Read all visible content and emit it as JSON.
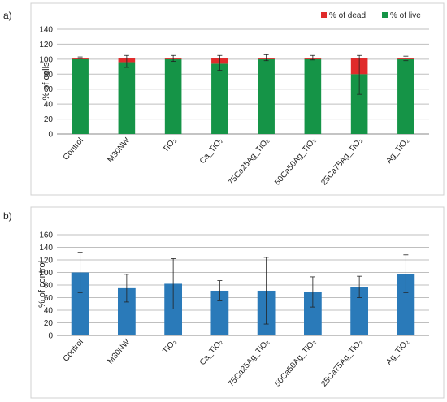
{
  "chart_data": [
    {
      "panel_label": "a)",
      "type": "bar",
      "stacked": true,
      "ylabel": "% of cells",
      "ylim": [
        0,
        140
      ],
      "yticks": [
        0,
        20,
        40,
        60,
        80,
        100,
        120,
        140
      ],
      "grid": true,
      "legend_position": "top-right",
      "categories": [
        "Control",
        "M30NW",
        "TiO₂",
        "Ca_TiO₂",
        "75Ca25Ag_TiO₂",
        "50Ca50Ag_TiO₂",
        "25Ca75Ag_TiO₂",
        "Ag_TiO₂"
      ],
      "series": [
        {
          "name": "% of live",
          "color": "#159447",
          "values": [
            100,
            96,
            100,
            94,
            100,
            100,
            80,
            100
          ]
        },
        {
          "name": "% of dead",
          "color": "#e02b2b",
          "values": [
            2,
            6,
            2,
            8,
            2,
            2,
            22,
            2
          ]
        }
      ],
      "error": [
        1,
        8,
        4,
        10,
        4,
        3,
        26,
        3
      ],
      "error_anchor": [
        102,
        97,
        101,
        95,
        102,
        102,
        79,
        101
      ]
    },
    {
      "panel_label": "b)",
      "type": "bar",
      "ylabel": "% of control",
      "ylim": [
        0,
        160
      ],
      "yticks": [
        0,
        20,
        40,
        60,
        80,
        100,
        120,
        140,
        160
      ],
      "grid": true,
      "categories": [
        "Control",
        "M30NW",
        "TiO₂",
        "Ca_TiO₂",
        "75Ca25Ag_TiO₂",
        "50Ca50Ag_TiO₂",
        "25Ca75Ag_TiO₂",
        "Ag_TiO₂"
      ],
      "series": [
        {
          "color": "#2a7ab9",
          "values": [
            100,
            75,
            82,
            71,
            71,
            69,
            77,
            98
          ]
        }
      ],
      "error": [
        32,
        22,
        40,
        16,
        53,
        24,
        17,
        30
      ]
    }
  ]
}
